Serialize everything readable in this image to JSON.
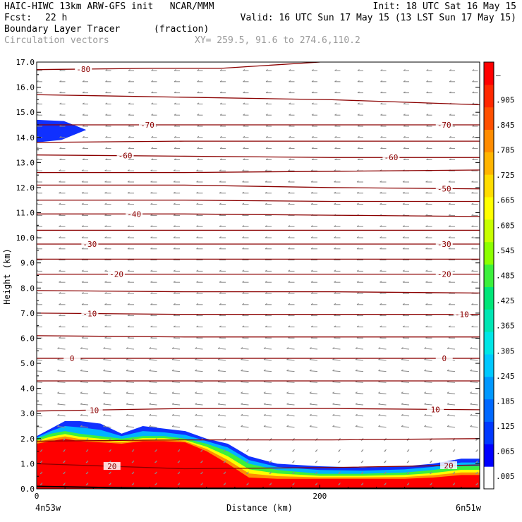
{
  "header": {
    "title_left": "HAIC-HIWC 13km ARW-GFS init   NCAR/MMM",
    "init": "Init: 18 UTC Sat 16 May 15",
    "fcst_label": "Fcst:",
    "fcst_value": "22 h",
    "valid": "Valid: 16 UTC Sun 17 May 15 (13 LST Sun 17 May 15)",
    "field_name": "Boundary Layer Tracer",
    "field_units": "(fraction)",
    "vectors_label": "Circulation vectors",
    "xy": "XY= 259.5, 91.6 to 274.6,110.2"
  },
  "chart_data": {
    "type": "heatmap",
    "xlabel": "Distance (km)",
    "ylabel": "Height (km)",
    "xlim": [
      0,
      313
    ],
    "ylim": [
      0,
      17
    ],
    "x_ticks": [
      {
        "value": 0,
        "label": "0"
      },
      {
        "value": 200,
        "label": "200"
      }
    ],
    "x_end_labels": {
      "left": "4n53w",
      "right": "6n51w"
    },
    "y_ticks": [
      "0.0",
      "1.0",
      "2.0",
      "3.0",
      "4.0",
      "5.0",
      "6.0",
      "7.0",
      "8.0",
      "9.0",
      "10.0",
      "11.0",
      "12.0",
      "13.0",
      "14.0",
      "15.0",
      "16.0",
      "17.0"
    ],
    "colorbar": {
      "labels": [
        ".005",
        ".065",
        ".125",
        ".185",
        ".245",
        ".305",
        ".365",
        ".425",
        ".485",
        ".545",
        ".605",
        ".665",
        ".725",
        ".785",
        ".845",
        ".905",
        "—"
      ],
      "colors": [
        "#ffffff",
        "#0000ff",
        "#0038ff",
        "#0068ff",
        "#0098ff",
        "#00c8ff",
        "#00e6e6",
        "#00e6b4",
        "#00e678",
        "#3cf03c",
        "#8cff00",
        "#c8ff00",
        "#ffff00",
        "#ffdc00",
        "#ffb400",
        "#ff8c00",
        "#ff5000",
        "#ff2800",
        "#ff0000"
      ]
    },
    "temperature_contours": [
      {
        "y": [
          15.7,
          15.6,
          15.5,
          15.3
        ],
        "label": "",
        "label_pos": []
      },
      {
        "y": [
          14.5,
          14.5,
          14.5,
          14.5
        ],
        "label": "-70",
        "label_pos": [
          0.25,
          0.92
        ]
      },
      {
        "y": [
          13.8,
          13.85,
          13.85,
          13.85
        ],
        "label": "",
        "label_pos": []
      },
      {
        "y": [
          13.3,
          13.25,
          13.2,
          13.2
        ],
        "label": "-60",
        "label_pos": [
          0.2,
          0.8
        ]
      },
      {
        "y": [
          12.6,
          12.6,
          12.65,
          12.7
        ],
        "label": "",
        "label_pos": []
      },
      {
        "y": [
          12.1,
          12.1,
          12.0,
          11.95
        ],
        "label": "-50",
        "label_pos": [
          0.92
        ]
      },
      {
        "y": [
          11.5,
          11.5,
          11.45,
          11.45
        ],
        "label": "",
        "label_pos": []
      },
      {
        "y": [
          10.95,
          10.95,
          10.9,
          10.85
        ],
        "label": "-40",
        "label_pos": [
          0.22
        ]
      },
      {
        "y": [
          10.3,
          10.3,
          10.3,
          10.3
        ],
        "label": "",
        "label_pos": []
      },
      {
        "y": [
          9.75,
          9.75,
          9.75,
          9.75
        ],
        "label": "-30",
        "label_pos": [
          0.12,
          0.92
        ]
      },
      {
        "y": [
          9.15,
          9.15,
          9.15,
          9.15
        ],
        "label": "",
        "label_pos": []
      },
      {
        "y": [
          8.55,
          8.55,
          8.55,
          8.55
        ],
        "label": "-20",
        "label_pos": [
          0.18,
          0.92
        ]
      },
      {
        "y": [
          7.9,
          7.85,
          7.85,
          7.8
        ],
        "label": "",
        "label_pos": []
      },
      {
        "y": [
          7.0,
          6.95,
          6.95,
          6.95
        ],
        "label": "-10",
        "label_pos": [
          0.12,
          0.96
        ]
      },
      {
        "y": [
          6.1,
          6.05,
          6.05,
          6.05
        ],
        "label": "",
        "label_pos": []
      },
      {
        "y": [
          5.2,
          5.2,
          5.2,
          5.2
        ],
        "label": "0",
        "label_pos": [
          0.08,
          0.92
        ]
      },
      {
        "y": [
          4.3,
          4.3,
          4.3,
          4.3
        ],
        "label": "",
        "label_pos": []
      },
      {
        "y": [
          3.1,
          3.2,
          3.2,
          3.15
        ],
        "label": "10",
        "label_pos": [
          0.13,
          0.9
        ]
      },
      {
        "y": [
          1.9,
          1.95,
          1.95,
          2.0
        ],
        "label": "",
        "label_pos": []
      },
      {
        "y": [
          1.0,
          0.8,
          0.85,
          0.95
        ],
        "label": "20",
        "label_pos": [
          0.17,
          0.93
        ]
      }
    ],
    "top_contour": {
      "points": [
        [
          0,
          16.7
        ],
        [
          80,
          16.75
        ],
        [
          130,
          16.75
        ],
        [
          200,
          17.0
        ]
      ],
      "label": "-80",
      "label_x": 33
    },
    "tracer_region": {
      "surface_profile_x": [
        0,
        10,
        20,
        30,
        45,
        60,
        75,
        90,
        105,
        120,
        135,
        150,
        170,
        200,
        230,
        260,
        280,
        300,
        313
      ],
      "blue_top": [
        2.1,
        2.4,
        2.7,
        2.7,
        2.6,
        2.2,
        2.5,
        2.4,
        2.3,
        2.0,
        1.8,
        1.3,
        1.0,
        0.9,
        0.85,
        0.9,
        1.0,
        1.2,
        1.2
      ],
      "green_top": [
        2.0,
        2.2,
        2.3,
        2.2,
        2.1,
        2.0,
        2.1,
        2.1,
        2.0,
        1.8,
        1.5,
        1.0,
        0.75,
        0.6,
        0.6,
        0.65,
        0.75,
        0.9,
        0.9
      ],
      "red_top": [
        1.8,
        1.9,
        2.0,
        1.9,
        1.85,
        1.8,
        1.9,
        1.9,
        1.85,
        1.5,
        1.0,
        0.45,
        0.4,
        0.4,
        0.4,
        0.4,
        0.45,
        0.55,
        0.55
      ],
      "upper_blob": {
        "x_end": 35,
        "y_low": 13.8,
        "y_high": 14.7
      }
    }
  }
}
